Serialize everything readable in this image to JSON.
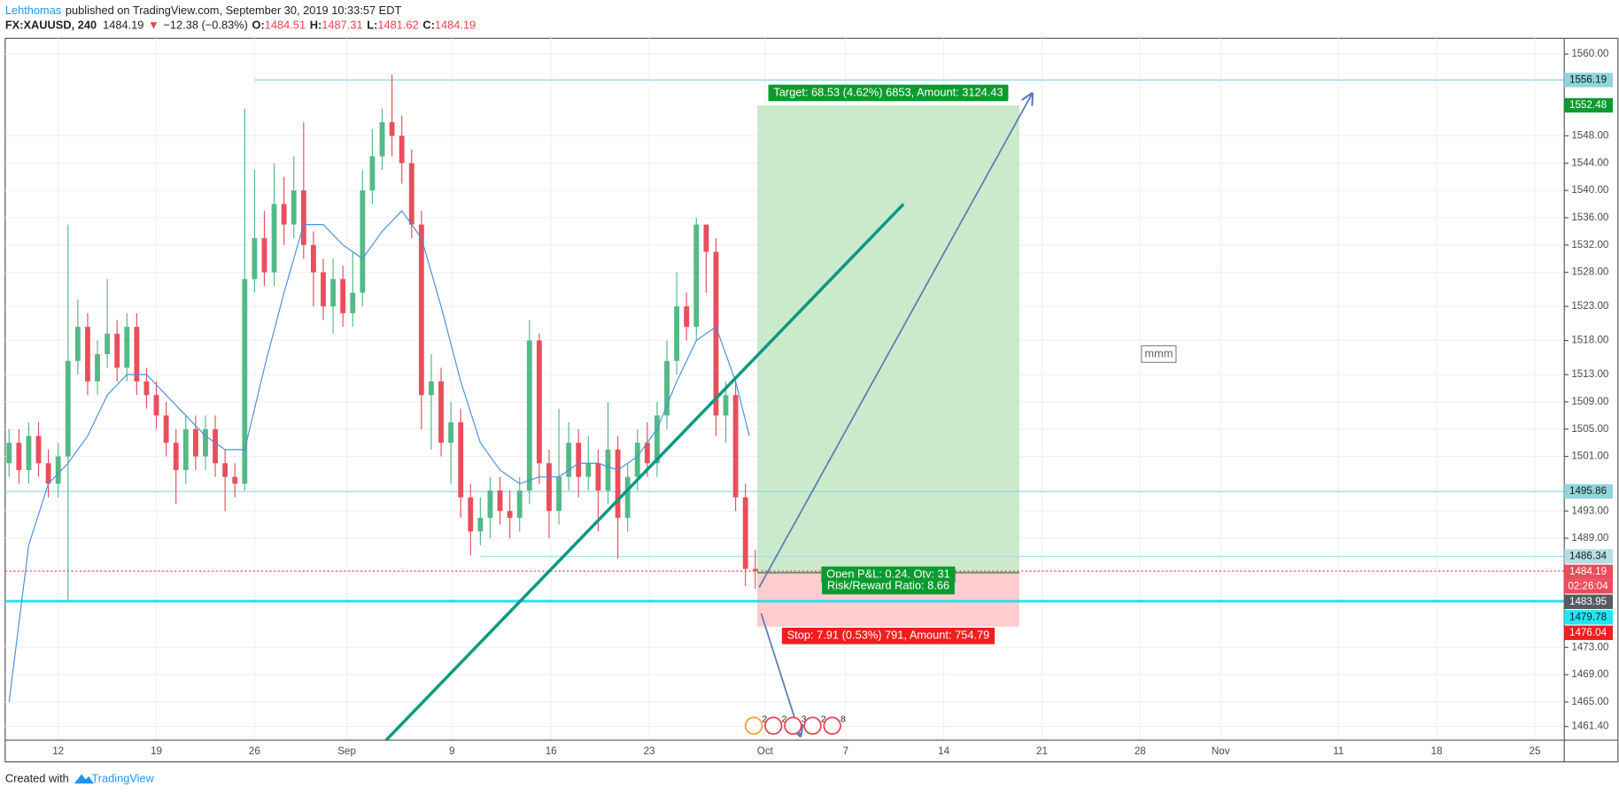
{
  "header": {
    "author": "Lehthomas",
    "published": "published on TradingView.com, September 30, 2019 10:33:57 EDT",
    "symbol": "FX:XAUUSD, 240",
    "last": "1484.19",
    "arrow": "▼",
    "change": "−12.38 (−0.83%)",
    "ohlc": [
      {
        "label": "O:",
        "value": "1484.51"
      },
      {
        "label": "H:",
        "value": "1487.31"
      },
      {
        "label": "L:",
        "value": "1481.62"
      },
      {
        "label": "C:",
        "value": "1484.19"
      }
    ]
  },
  "chart_data": {
    "type": "candlestick",
    "xlim": [
      -2.7,
      76.7
    ],
    "ylim": [
      1459.4,
      1562.3
    ],
    "xticks": [
      {
        "value": 0,
        "label": "12"
      },
      {
        "value": 5,
        "label": "19"
      },
      {
        "value": 10,
        "label": "26"
      },
      {
        "value": 14.7,
        "label": "Sep"
      },
      {
        "value": 20.05,
        "label": "9"
      },
      {
        "value": 25.1,
        "label": "16"
      },
      {
        "value": 30.1,
        "label": "23"
      },
      {
        "value": 36,
        "label": "Oct"
      },
      {
        "value": 40.1,
        "label": "7"
      },
      {
        "value": 45.1,
        "label": "14"
      },
      {
        "value": 50.1,
        "label": "21"
      },
      {
        "value": 55.1,
        "label": "28"
      },
      {
        "value": 59.2,
        "label": "Nov"
      },
      {
        "value": 65.2,
        "label": "11"
      },
      {
        "value": 70.2,
        "label": "18"
      },
      {
        "value": 75.2,
        "label": "25"
      }
    ],
    "yticks": [
      {
        "value": 1560,
        "label": "1560.00"
      },
      {
        "value": 1548,
        "label": "1548.00"
      },
      {
        "value": 1544,
        "label": "1544.00"
      },
      {
        "value": 1540,
        "label": "1540.00"
      },
      {
        "value": 1536,
        "label": "1536.00"
      },
      {
        "value": 1532,
        "label": "1532.00"
      },
      {
        "value": 1528,
        "label": "1528.00"
      },
      {
        "value": 1523,
        "label": "1523.00"
      },
      {
        "value": 1518,
        "label": "1518.00"
      },
      {
        "value": 1513,
        "label": "1513.00"
      },
      {
        "value": 1509,
        "label": "1509.00"
      },
      {
        "value": 1505,
        "label": "1505.00"
      },
      {
        "value": 1501,
        "label": "1501.00"
      },
      {
        "value": 1493,
        "label": "1493.00"
      },
      {
        "value": 1489,
        "label": "1489.00"
      },
      {
        "value": 1473,
        "label": "1473.00"
      },
      {
        "value": 1469,
        "label": "1469.00"
      },
      {
        "value": 1465,
        "label": "1465.00"
      },
      {
        "value": 1461.4,
        "label": "1461.40"
      }
    ],
    "grid": true,
    "up_color": "#53b987",
    "down_color": "#eb4d5c",
    "candles": {
      "x": [
        -2.5,
        -2,
        -1.5,
        -1,
        -0.5,
        0,
        0.5,
        1,
        1.5,
        2,
        2.5,
        3,
        3.5,
        4,
        4.5,
        5,
        5.5,
        6,
        6.5,
        7,
        7.5,
        8,
        8.5,
        9,
        9.5,
        10,
        10.5,
        11,
        11.5,
        12,
        12.5,
        13,
        13.5,
        14,
        14.5,
        15,
        15.5,
        16,
        16.5,
        17,
        17.5,
        18,
        18.5,
        19,
        19.5,
        20,
        20.5,
        21,
        21.5,
        22,
        22.5,
        23,
        23.5,
        24,
        24.5,
        25,
        25.5,
        26,
        26.5,
        27,
        27.5,
        28,
        28.5,
        29,
        29.5,
        30,
        30.5,
        31,
        31.5,
        32,
        32.5,
        33,
        33.5,
        34,
        34.5,
        35,
        35.5
      ],
      "open": [
        1500,
        1503,
        1499,
        1504,
        1500,
        1497,
        1501,
        1515,
        1520,
        1512,
        1516,
        1519,
        1514,
        1520,
        1512,
        1510,
        1507,
        1503,
        1499,
        1505,
        1501,
        1505,
        1500,
        1498,
        1497,
        1527,
        1533,
        1528,
        1538,
        1535,
        1540,
        1532,
        1528,
        1523,
        1527,
        1522,
        1525,
        1540,
        1545,
        1550,
        1548,
        1544,
        1535,
        1510,
        1512,
        1503,
        1506,
        1495,
        1490,
        1492,
        1496,
        1493,
        1492,
        1496,
        1518,
        1500,
        1493,
        1498,
        1503,
        1498,
        1500,
        1496,
        1502,
        1492,
        1498,
        1503,
        1500,
        1507,
        1515,
        1523,
        1520,
        1535,
        1531,
        1507,
        1510,
        1495,
        1484.51
      ],
      "high": [
        1505,
        1505,
        1506,
        1506,
        1502,
        1503,
        1535,
        1524,
        1522,
        1518,
        1527,
        1521,
        1522,
        1522,
        1514,
        1512,
        1509,
        1505,
        1507,
        1507,
        1507,
        1507,
        1502,
        1500,
        1552,
        1543,
        1537,
        1544,
        1542,
        1545,
        1550,
        1534,
        1530,
        1530,
        1529,
        1531,
        1543,
        1549,
        1552,
        1557,
        1551,
        1546,
        1537,
        1516,
        1514,
        1509,
        1508,
        1497,
        1495,
        1498,
        1498,
        1496,
        1498,
        1521,
        1519,
        1502,
        1508,
        1506,
        1505,
        1504,
        1502,
        1509,
        1504,
        1500,
        1505,
        1506,
        1509,
        1518,
        1528,
        1525,
        1536,
        1535,
        1533,
        1512,
        1512,
        1497,
        1487.31
      ],
      "low": [
        1498,
        1497,
        1497,
        1498,
        1495,
        1495,
        1480,
        1513,
        1510,
        1510,
        1514,
        1512,
        1512,
        1510,
        1508,
        1505,
        1501,
        1494,
        1497,
        1499,
        1499,
        1498,
        1493,
        1495,
        1496,
        1525,
        1526,
        1526,
        1532,
        1533,
        1530,
        1523,
        1521,
        1519,
        1520,
        1520,
        1523,
        1538,
        1543,
        1545,
        1541,
        1533,
        1505,
        1502,
        1501,
        1497,
        1492,
        1486.5,
        1488,
        1489,
        1491,
        1489,
        1490,
        1494,
        1497,
        1489,
        1491,
        1496,
        1495,
        1496,
        1490,
        1494,
        1486,
        1490,
        1496,
        1498,
        1498,
        1505,
        1513,
        1518,
        1518,
        1525,
        1504,
        1503,
        1493,
        1482,
        1481.62
      ],
      "close": [
        1503,
        1499,
        1504,
        1500,
        1497,
        1501,
        1515,
        1520,
        1512,
        1516,
        1519,
        1514,
        1520,
        1512,
        1510,
        1507,
        1503,
        1499,
        1505,
        1501,
        1505,
        1500,
        1498,
        1497,
        1527,
        1533,
        1528,
        1538,
        1535,
        1540,
        1532,
        1528,
        1523,
        1527,
        1522,
        1525,
        1540,
        1545,
        1550,
        1548,
        1544,
        1535,
        1510,
        1512,
        1503,
        1506,
        1495,
        1490,
        1492,
        1496,
        1493,
        1492,
        1496,
        1518,
        1500,
        1493,
        1498,
        1503,
        1498,
        1500,
        1496,
        1502,
        1492,
        1498,
        1503,
        1500,
        1507,
        1515,
        1523,
        1520,
        1535,
        1531,
        1507,
        1510,
        1495,
        1484.51,
        1484.19
      ]
    },
    "ma": {
      "color": "#4a90d9",
      "x": [
        -2.5,
        -1.5,
        -0.5,
        0.5,
        1.5,
        2.5,
        3.5,
        4.5,
        5.5,
        6.5,
        7.5,
        8.5,
        9.5,
        10.5,
        11.5,
        12.5,
        13.5,
        14.5,
        15.5,
        16.5,
        17.5,
        18.5,
        19.5,
        20.5,
        21.5,
        22.5,
        23.5,
        24.5,
        25.5,
        26.5,
        27.5,
        28.5,
        29.5,
        30.5,
        31.5,
        32.5,
        33.5,
        34.5,
        35.2
      ],
      "values": [
        1465,
        1488,
        1497,
        1500,
        1504,
        1510,
        1513,
        1513,
        1510,
        1507,
        1504,
        1502,
        1502,
        1514,
        1525,
        1535,
        1535,
        1532,
        1530,
        1534,
        1537,
        1533,
        1523,
        1512,
        1503,
        1499,
        1497,
        1498,
        1498,
        1500,
        1500,
        1499,
        1501,
        1505,
        1512,
        1518,
        1520,
        1512,
        1504
      ]
    },
    "hlines": [
      {
        "value": 1556.19,
        "from": 10,
        "color": "#8fd6dc",
        "width": 1,
        "dash": false
      },
      {
        "value": 1495.86,
        "from": -2.7,
        "color": "#8fd6dc",
        "width": 1,
        "dash": false
      },
      {
        "value": 1486.34,
        "from": 21.5,
        "color": "#a8dfe4",
        "width": 1,
        "dash": false
      },
      {
        "value": 1479.78,
        "from": -2.7,
        "color": "#1fe0f0",
        "width": 2.5,
        "dash": false
      },
      {
        "value": 1484.19,
        "from": -2.7,
        "color": "#e5434f",
        "width": 1,
        "dash": true
      }
    ],
    "price_labels": [
      {
        "value": 1556.19,
        "bg": "#8fd6dc",
        "fg": "#1a1a1a"
      },
      {
        "value": 1552.48,
        "bg": "#0a9b2f",
        "fg": "#ffffff"
      },
      {
        "value": 1495.86,
        "bg": "#8fd6dc",
        "fg": "#1a1a1a"
      },
      {
        "value": 1486.34,
        "bg": "#b5dfe6",
        "fg": "#1a1a1a"
      },
      {
        "value": 1484.19,
        "bg": "#eb4d5c",
        "fg": "#ffffff",
        "countdown": "02:26:04"
      },
      {
        "value": 1483.95,
        "bg": "#555b61",
        "fg": "#ffffff"
      },
      {
        "value": 1479.78,
        "bg": "#1fe6f5",
        "fg": "#1a1a1a"
      },
      {
        "value": 1476.04,
        "bg": "#f01f1f",
        "fg": "#ffffff"
      }
    ],
    "position": {
      "x_start": 35.6,
      "x_end": 48.95,
      "entry": 1483.95,
      "target": 1552.48,
      "stop": 1476.04,
      "target_label": "Target: 68.53 (4.62%) 6853, Amount: 3124.43",
      "pnl_label": "Open P&L: 0.24, Qty: 31",
      "rr_label": "Risk/Reward Ratio: 8.66",
      "stop_label": "Stop: 7.91 (0.53%) 791, Amount: 754.79"
    },
    "trend_line": {
      "x": [
        16.7,
        43.05
      ],
      "values": [
        1459.4,
        1538
      ],
      "color": "#089981"
    },
    "arrows": [
      {
        "x": [
          35.7,
          49.6
        ],
        "values": [
          1481.8,
          1554.2
        ],
        "color": "#5b7bb5"
      },
      {
        "x": [
          35.8,
          37.8
        ],
        "values": [
          1478,
          1460
        ],
        "color": "#5b7bb5"
      }
    ],
    "note": {
      "text": "mmm",
      "x": 56.05,
      "value": 1516
    },
    "events": [
      "2",
      "2",
      "3",
      "2",
      "8"
    ]
  },
  "footer": {
    "created_with": "Created with",
    "brand": "TradingView"
  }
}
